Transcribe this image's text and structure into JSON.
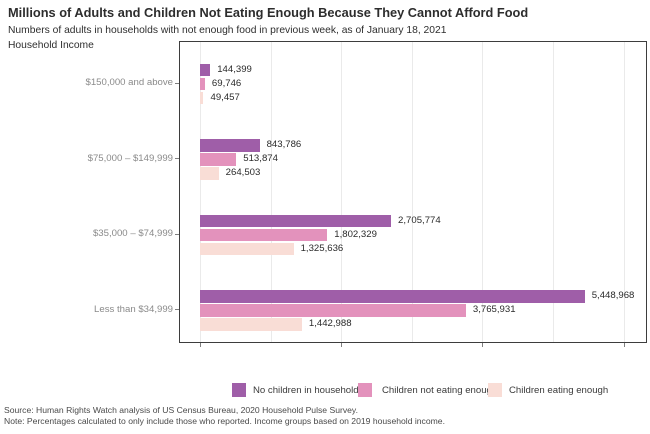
{
  "header": {
    "title": "Millions of Adults and Children Not Eating Enough Because They Cannot Afford Food",
    "subtitle": "Numbers of adults in households with not enough food in previous week, as of January 18, 2021",
    "axis_title": "Household Income"
  },
  "chart_data": {
    "type": "bar",
    "orientation": "horizontal",
    "title": "Millions of Adults and Children Not Eating Enough Because They Cannot Afford Food",
    "subtitle": "Numbers of adults in households with not enough food in previous week, as of January 18, 2021",
    "ylabel": "Household Income",
    "xlabel": "",
    "categories": [
      "$150,000 and above",
      "$75,000 – $149,999",
      "$35,000 – $74,999",
      "Less than $34,999"
    ],
    "series": [
      {
        "name": "No children in household",
        "color": "#9f5ea8",
        "values": [
          144399,
          843786,
          2705774,
          5448968
        ]
      },
      {
        "name": "Children not eating enough",
        "color": "#e392bc",
        "values": [
          69746,
          513874,
          1802329,
          3765931
        ]
      },
      {
        "name": "Children eating enough",
        "color": "#f9ddd6",
        "values": [
          49457,
          264503,
          1325636,
          1442988
        ]
      }
    ],
    "value_labels_shown": true,
    "xlim": [
      0,
      6340000
    ],
    "gridline_interval": 1000000,
    "tick_interval": 2000000,
    "x_tick_labels_shown": false,
    "grid": true,
    "legend_position": "bottom"
  },
  "footer": {
    "source": "Source: Human Rights Watch analysis of US Census Bureau, 2020 Household Pulse Survey.",
    "note": "Note: Percentages calculated to only include those who reported. Income groups based on 2019 household income."
  },
  "colors": {
    "no_children": "#9f5ea8",
    "children_not_eating_enough": "#e392bc",
    "children_eating_enough": "#f9ddd6",
    "plot_border": "#3d3d3d",
    "gridline": "#eaeaea",
    "category_label": "#8a8a8a",
    "text": "#2d2d2d"
  }
}
